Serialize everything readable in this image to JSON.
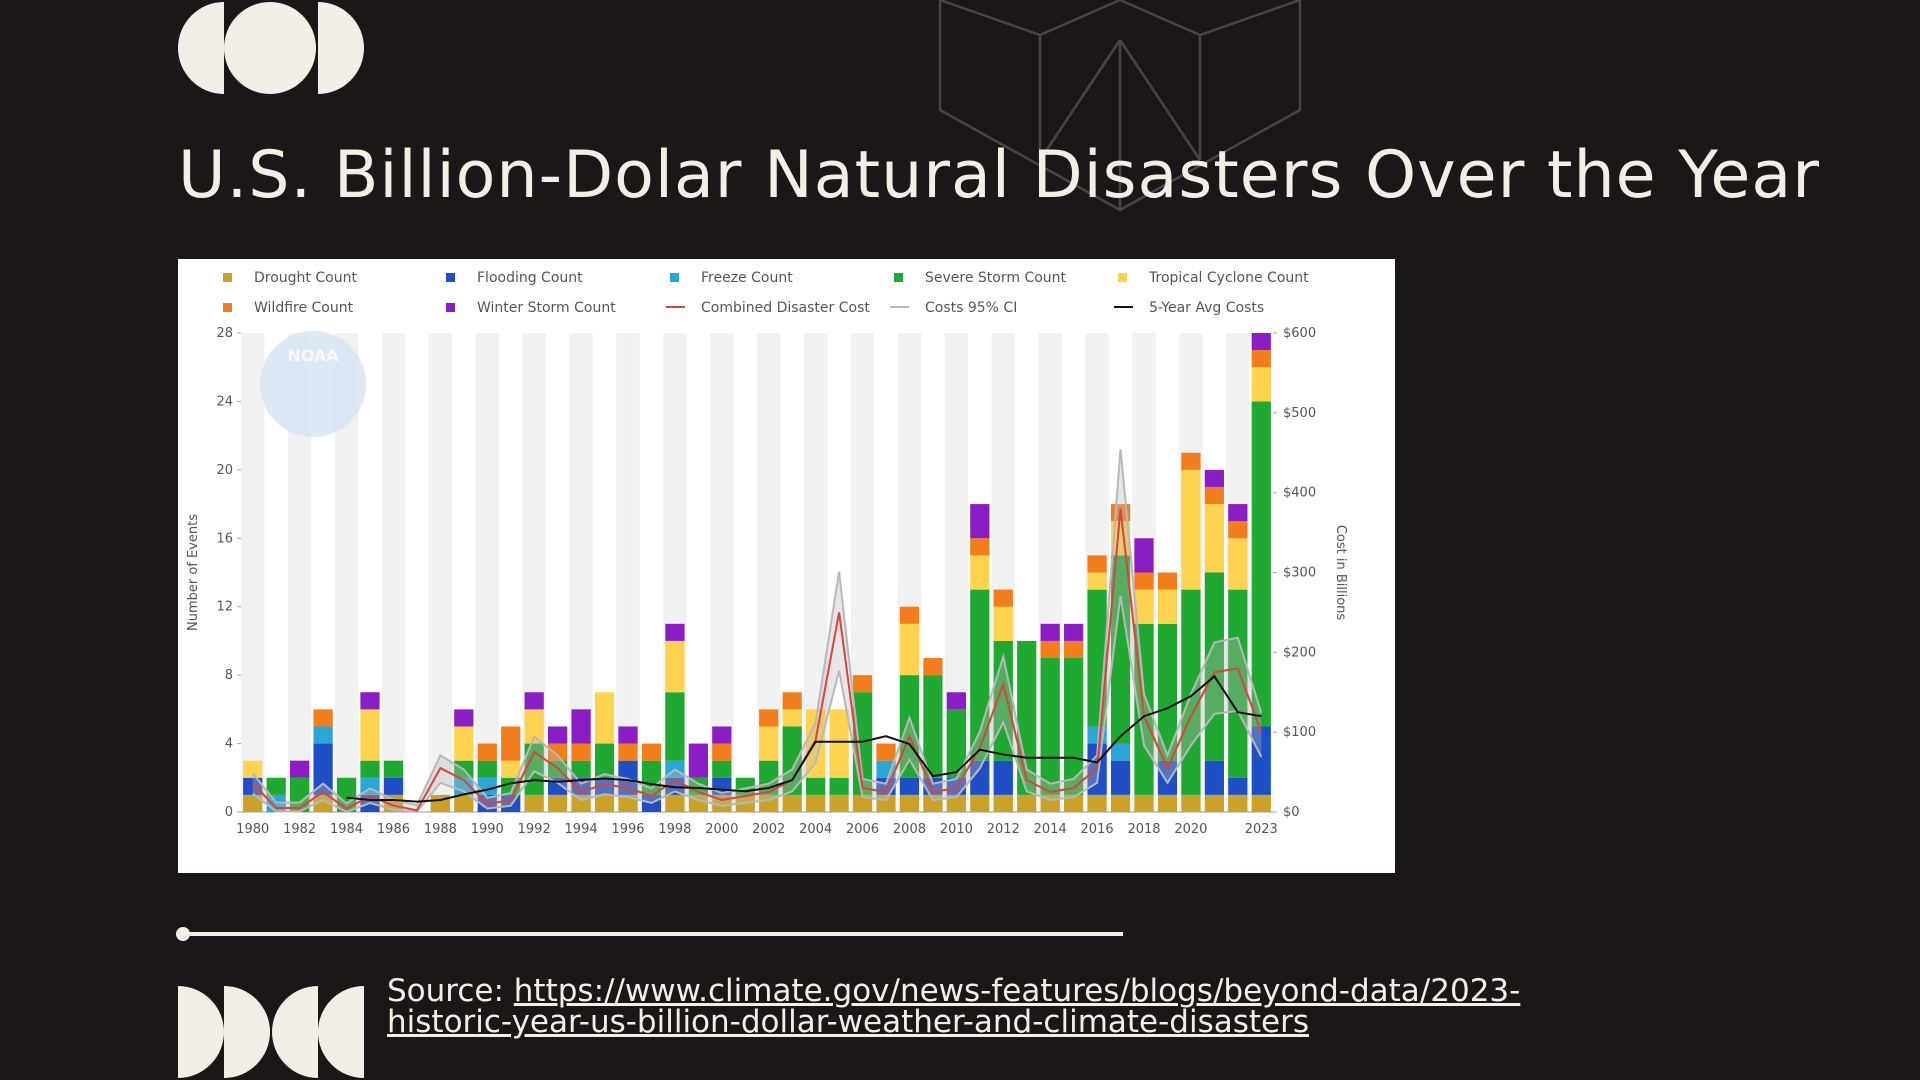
{
  "slide": {
    "title": "U.S. Billion-Dolar Natural Disasters Over the Year",
    "source_label": "Source:",
    "source_url_line1": "https://www.climate.gov/news-features/blogs/beyond-data/2023-",
    "source_url_line2": "historic-year-us-billion-dollar-weather-and-climate-disasters"
  },
  "colors": {
    "background": "#1b1717",
    "cream": "#f4efe6"
  },
  "chart_data": {
    "type": "bar",
    "stacked": true,
    "watermark": "NOAA",
    "ylabel": "Number of Events",
    "y2label": "Cost in Billions",
    "ylim": [
      0,
      28
    ],
    "yticks": [
      0,
      4,
      8,
      12,
      16,
      20,
      24,
      28
    ],
    "y2lim": [
      0,
      600
    ],
    "y2ticks": [
      "$0",
      "$100",
      "$200",
      "$300",
      "$400",
      "$500",
      "$600"
    ],
    "x_tick_labels": [
      "1980",
      "1982",
      "1984",
      "1986",
      "1988",
      "1990",
      "1992",
      "1994",
      "1996",
      "1998",
      "2000",
      "2002",
      "2004",
      "2006",
      "2008",
      "2010",
      "2012",
      "2014",
      "2016",
      "2018",
      "2020",
      "2023"
    ],
    "years": [
      1980,
      1981,
      1982,
      1983,
      1984,
      1985,
      1986,
      1987,
      1988,
      1989,
      1990,
      1991,
      1992,
      1993,
      1994,
      1995,
      1996,
      1997,
      1998,
      1999,
      2000,
      2001,
      2002,
      2003,
      2004,
      2005,
      2006,
      2007,
      2008,
      2009,
      2010,
      2011,
      2012,
      2013,
      2014,
      2015,
      2016,
      2017,
      2018,
      2019,
      2020,
      2021,
      2022,
      2023
    ],
    "legend": [
      {
        "name": "Drought Count",
        "color": "#c9a227",
        "kind": "box"
      },
      {
        "name": "Flooding Count",
        "color": "#1f4fc4",
        "kind": "box"
      },
      {
        "name": "Freeze Count",
        "color": "#2aa7d6",
        "kind": "box"
      },
      {
        "name": "Severe Storm Count",
        "color": "#1fa832",
        "kind": "box"
      },
      {
        "name": "Tropical Cyclone Count",
        "color": "#fdd34f",
        "kind": "box"
      },
      {
        "name": "Wildfire Count",
        "color": "#f27d1c",
        "kind": "box"
      },
      {
        "name": "Winter Storm Count",
        "color": "#8a1dc4",
        "kind": "box"
      },
      {
        "name": "Combined Disaster Cost",
        "color": "#d9443b",
        "kind": "line"
      },
      {
        "name": "Costs 95% CI",
        "color": "#b8b8b8",
        "kind": "line"
      },
      {
        "name": "5-Year Avg Costs",
        "color": "#111111",
        "kind": "line"
      }
    ],
    "series": [
      {
        "name": "Drought Count",
        "color": "#c9a227",
        "values": [
          1,
          0,
          0,
          1,
          0,
          0,
          1,
          0,
          1,
          1,
          0,
          0,
          1,
          1,
          1,
          1,
          1,
          0,
          1,
          1,
          1,
          1,
          1,
          1,
          1,
          1,
          1,
          1,
          1,
          1,
          1,
          1,
          1,
          1,
          1,
          1,
          1,
          1,
          1,
          1,
          1,
          1,
          1,
          1
        ]
      },
      {
        "name": "Flooding Count",
        "color": "#1f4fc4",
        "values": [
          1,
          0,
          0,
          3,
          0,
          1,
          1,
          0,
          0,
          0,
          1,
          1,
          0,
          1,
          1,
          1,
          2,
          1,
          1,
          0,
          1,
          0,
          0,
          0,
          0,
          0,
          0,
          1,
          1,
          1,
          1,
          2,
          2,
          0,
          0,
          0,
          3,
          2,
          0,
          2,
          0,
          2,
          1,
          4
        ]
      },
      {
        "name": "Freeze Count",
        "color": "#2aa7d6",
        "values": [
          0,
          1,
          0,
          1,
          0,
          1,
          0,
          0,
          0,
          1,
          1,
          0,
          0,
          0,
          0,
          0,
          0,
          0,
          1,
          0,
          0,
          0,
          0,
          0,
          0,
          0,
          0,
          1,
          0,
          0,
          0,
          0,
          0,
          0,
          0,
          0,
          1,
          1,
          0,
          0,
          0,
          0,
          0,
          0
        ]
      },
      {
        "name": "Severe Storm Count",
        "color": "#1fa832",
        "values": [
          0,
          1,
          2,
          0,
          2,
          1,
          1,
          0,
          0,
          1,
          1,
          1,
          3,
          1,
          1,
          2,
          0,
          2,
          4,
          1,
          1,
          1,
          2,
          4,
          1,
          1,
          6,
          0,
          6,
          6,
          4,
          10,
          7,
          9,
          8,
          8,
          8,
          11,
          10,
          8,
          12,
          11,
          11,
          19
        ]
      },
      {
        "name": "Tropical Cyclone Count",
        "color": "#fdd34f",
        "values": [
          1,
          0,
          0,
          0,
          0,
          3,
          0,
          0,
          0,
          2,
          0,
          1,
          2,
          0,
          0,
          3,
          0,
          0,
          3,
          0,
          0,
          0,
          2,
          1,
          4,
          4,
          0,
          0,
          3,
          0,
          0,
          2,
          2,
          0,
          0,
          0,
          1,
          2,
          2,
          2,
          7,
          4,
          3,
          2
        ]
      },
      {
        "name": "Wildfire Count",
        "color": "#f27d1c",
        "values": [
          0,
          0,
          0,
          1,
          0,
          0,
          0,
          0,
          0,
          0,
          1,
          2,
          0,
          1,
          1,
          0,
          1,
          1,
          0,
          0,
          1,
          0,
          1,
          1,
          0,
          0,
          1,
          1,
          1,
          1,
          0,
          1,
          1,
          0,
          1,
          1,
          1,
          1,
          1,
          1,
          1,
          1,
          1,
          1
        ]
      },
      {
        "name": "Winter Storm Count",
        "color": "#8a1dc4",
        "values": [
          0,
          0,
          1,
          0,
          0,
          1,
          0,
          0,
          0,
          1,
          0,
          0,
          1,
          1,
          2,
          0,
          1,
          0,
          1,
          2,
          1,
          0,
          0,
          0,
          0,
          0,
          0,
          0,
          0,
          0,
          1,
          2,
          0,
          0,
          1,
          1,
          0,
          0,
          2,
          0,
          0,
          1,
          1,
          1
        ]
      }
    ],
    "cost_lines": [
      {
        "name": "Combined Disaster Cost",
        "color": "#d9443b",
        "values": [
          36,
          5,
          5,
          25,
          4,
          20,
          8,
          2,
          55,
          40,
          10,
          15,
          75,
          55,
          25,
          35,
          30,
          20,
          40,
          25,
          15,
          20,
          25,
          40,
          90,
          250,
          30,
          25,
          95,
          25,
          30,
          80,
          160,
          40,
          25,
          30,
          55,
          380,
          120,
          55,
          120,
          175,
          180,
          100
        ]
      },
      {
        "name": "5-Year Avg Costs",
        "color": "#111111",
        "values": [
          null,
          null,
          null,
          null,
          18,
          15,
          15,
          13,
          15,
          22,
          28,
          36,
          40,
          38,
          40,
          42,
          40,
          35,
          31,
          30,
          28,
          26,
          30,
          40,
          88,
          88,
          88,
          95,
          85,
          45,
          50,
          78,
          72,
          68,
          68,
          68,
          62,
          95,
          120,
          130,
          145,
          170,
          125,
          120
        ]
      }
    ]
  }
}
